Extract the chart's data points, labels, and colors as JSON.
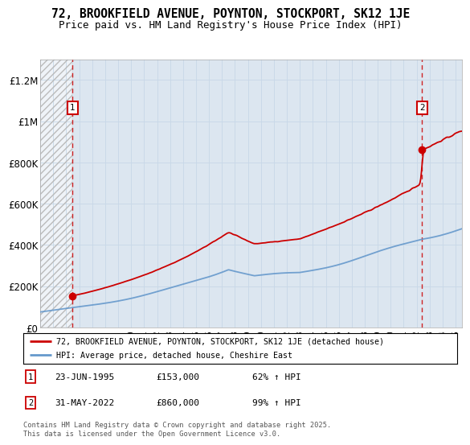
{
  "title_line1": "72, BROOKFIELD AVENUE, POYNTON, STOCKPORT, SK12 1JE",
  "title_line2": "Price paid vs. HM Land Registry's House Price Index (HPI)",
  "ylabel_ticks": [
    "£0",
    "£200K",
    "£400K",
    "£600K",
    "£800K",
    "£1M",
    "£1.2M"
  ],
  "ytick_values": [
    0,
    200000,
    400000,
    600000,
    800000,
    1000000,
    1200000
  ],
  "ylim": [
    0,
    1300000
  ],
  "xlim_start": 1993.0,
  "xlim_end": 2025.5,
  "xtick_years": [
    1993,
    1994,
    1995,
    1996,
    1997,
    1998,
    1999,
    2000,
    2001,
    2002,
    2003,
    2004,
    2005,
    2006,
    2007,
    2008,
    2009,
    2010,
    2011,
    2012,
    2013,
    2014,
    2015,
    2016,
    2017,
    2018,
    2019,
    2020,
    2021,
    2022,
    2023,
    2024,
    2025
  ],
  "hatch_region_start": 1993.0,
  "hatch_region_end": 1995.48,
  "marker1_x": 1995.48,
  "marker1_y": 153000,
  "marker2_x": 2022.42,
  "marker2_y": 860000,
  "vline1_x": 1995.48,
  "vline2_x": 2022.42,
  "hpi_color": "#6699cc",
  "property_color": "#cc0000",
  "grid_color": "#c8d8e8",
  "background_color": "#dce6f0",
  "legend_label1": "72, BROOKFIELD AVENUE, POYNTON, STOCKPORT, SK12 1JE (detached house)",
  "legend_label2": "HPI: Average price, detached house, Cheshire East",
  "marker1_label": "1",
  "marker2_label": "2",
  "marker1_date": "23-JUN-1995",
  "marker1_price": "£153,000",
  "marker1_pct": "62% ↑ HPI",
  "marker2_date": "31-MAY-2022",
  "marker2_price": "£860,000",
  "marker2_pct": "99% ↑ HPI",
  "footnote": "Contains HM Land Registry data © Crown copyright and database right 2025.\nThis data is licensed under the Open Government Licence v3.0."
}
